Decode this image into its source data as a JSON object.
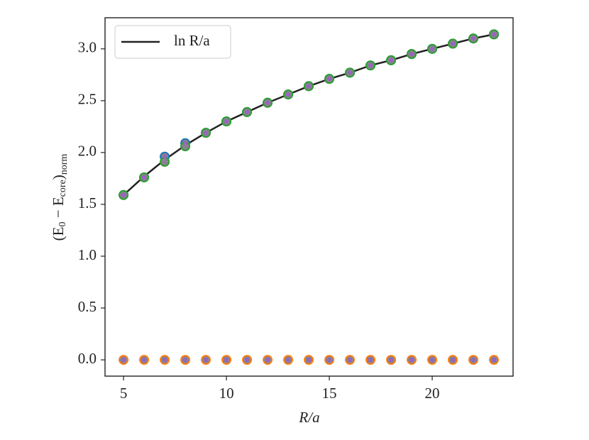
{
  "chart_data": {
    "type": "line",
    "xlabel": "R/a",
    "ylabel": [
      "(E",
      "0",
      " − E",
      "core",
      ")",
      "norm"
    ],
    "x": [
      5,
      6,
      7,
      8,
      9,
      10,
      11,
      12,
      13,
      14,
      15,
      16,
      17,
      18,
      19,
      20,
      21,
      22,
      23
    ],
    "xlim": [
      4.1,
      23.93
    ],
    "xticks": [
      5,
      10,
      15,
      20
    ],
    "ylim": [
      -0.157,
      3.3
    ],
    "yticks": [
      {
        "value": 0,
        "label": "0.0"
      },
      {
        "value": 0.5,
        "label": "0.5"
      },
      {
        "value": 1,
        "label": "1.0"
      },
      {
        "value": 1.5,
        "label": "1.5"
      },
      {
        "value": 2,
        "label": "2.0"
      },
      {
        "value": 2.5,
        "label": "2.5"
      },
      {
        "value": 3,
        "label": "3.0"
      }
    ],
    "legend": "upper left",
    "series": [
      {
        "name": "ln R/a",
        "kind": "line",
        "color": "#222222",
        "values": [
          1.59,
          1.77,
          1.93,
          2.07,
          2.19,
          2.3,
          2.39,
          2.48,
          2.56,
          2.64,
          2.71,
          2.77,
          2.84,
          2.89,
          2.95,
          3.0,
          3.05,
          3.1,
          3.14
        ]
      },
      {
        "kind": "o",
        "color": "#1f77b4",
        "values": [
          1.59,
          1.76,
          1.96,
          2.09,
          2.19,
          2.3,
          2.39,
          2.48,
          2.56,
          2.64,
          2.71,
          2.77,
          2.84,
          2.89,
          2.95,
          3.0,
          3.05,
          3.1,
          3.14
        ]
      },
      {
        "kind": "o",
        "color": "#2ca02c",
        "values": [
          1.59,
          1.76,
          1.91,
          2.06,
          2.19,
          2.3,
          2.39,
          2.48,
          2.56,
          2.64,
          2.71,
          2.77,
          2.84,
          2.89,
          2.95,
          3.0,
          3.05,
          3.1,
          3.14
        ]
      },
      {
        "kind": ".",
        "color": "#9467bd",
        "values": [
          1.59,
          1.76,
          1.96,
          2.09,
          2.19,
          2.3,
          2.39,
          2.48,
          2.56,
          2.64,
          2.71,
          2.77,
          2.84,
          2.89,
          2.95,
          3.0,
          3.05,
          3.1,
          3.14
        ]
      },
      {
        "kind": "o",
        "color": "#ff7f0e",
        "values": [
          0,
          0,
          0,
          0,
          0,
          0,
          0,
          0,
          0,
          0,
          0,
          0,
          0,
          0,
          0,
          0,
          0,
          0,
          0
        ]
      },
      {
        "kind": ".",
        "color": "#9467bd",
        "values": [
          0,
          0,
          0,
          0,
          0,
          0,
          0,
          0,
          0,
          0,
          0,
          0,
          0,
          0,
          0,
          0,
          0,
          0,
          0
        ]
      }
    ]
  }
}
